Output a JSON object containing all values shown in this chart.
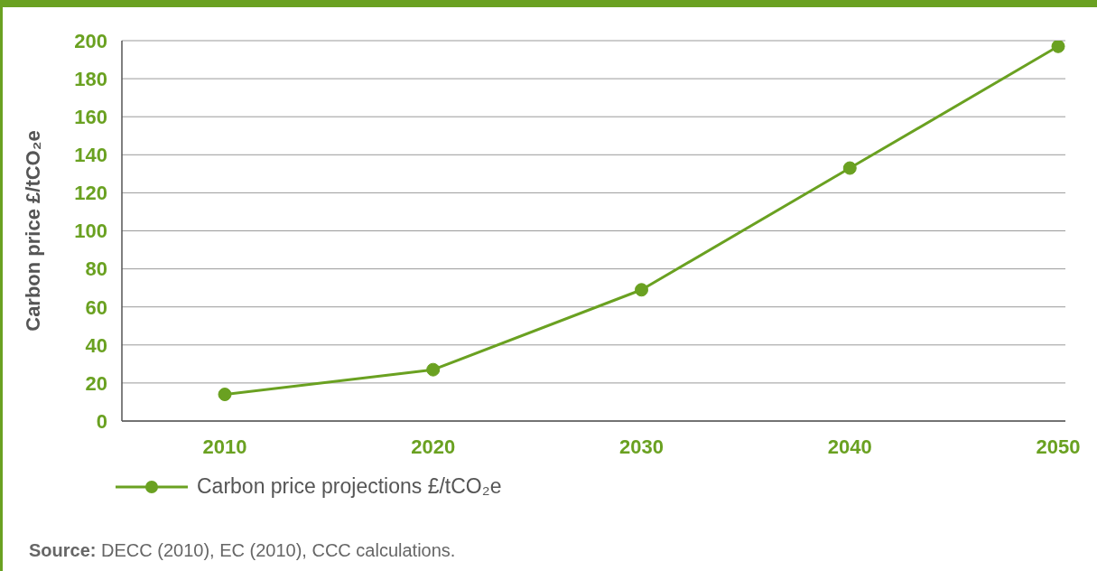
{
  "chart_data": {
    "type": "line",
    "ylabel": "Carbon price £/tCO₂e",
    "categories": [
      "2010",
      "2020",
      "2030",
      "2040",
      "2050"
    ],
    "series": [
      {
        "name": "Carbon price projections £/tCO₂e",
        "color": "#6aa121",
        "values": [
          14,
          27,
          69,
          133,
          197
        ]
      }
    ],
    "ylim": [
      0,
      200
    ],
    "yticks": [
      0,
      20,
      40,
      60,
      80,
      100,
      120,
      140,
      160,
      180,
      200
    ],
    "grid": "y",
    "legend": "bottom",
    "marker": "circle",
    "line_style": "solid",
    "annotations": [
      "Source: DECC (2010), EC (2010), CCC calculations."
    ]
  }
}
